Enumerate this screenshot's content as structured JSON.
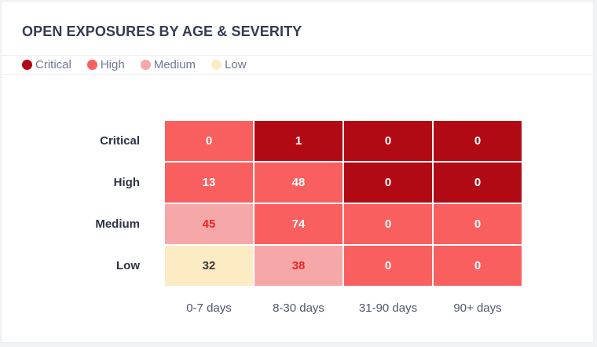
{
  "widget": {
    "title": "OPEN EXPOSURES BY AGE & SEVERITY"
  },
  "legend": [
    {
      "label": "Critical",
      "color": "#b20a14"
    },
    {
      "label": "High",
      "color": "#fa5f5f"
    },
    {
      "label": "Medium",
      "color": "#f6a8a8"
    },
    {
      "label": "Low",
      "color": "#fdecc3"
    }
  ],
  "chart_data": {
    "type": "heatmap",
    "rows": [
      "Critical",
      "High",
      "Medium",
      "Low"
    ],
    "columns": [
      "0-7 days",
      "8-30 days",
      "31-90 days",
      "90+ days"
    ],
    "values": [
      [
        0,
        1,
        0,
        0
      ],
      [
        13,
        48,
        0,
        0
      ],
      [
        45,
        74,
        0,
        0
      ],
      [
        32,
        38,
        0,
        0
      ]
    ],
    "cell_levels": [
      [
        "High",
        "Critical",
        "Critical",
        "Critical"
      ],
      [
        "High",
        "High",
        "Critical",
        "Critical"
      ],
      [
        "Medium",
        "High",
        "High",
        "High"
      ],
      [
        "Low",
        "Medium",
        "High",
        "High"
      ]
    ]
  }
}
